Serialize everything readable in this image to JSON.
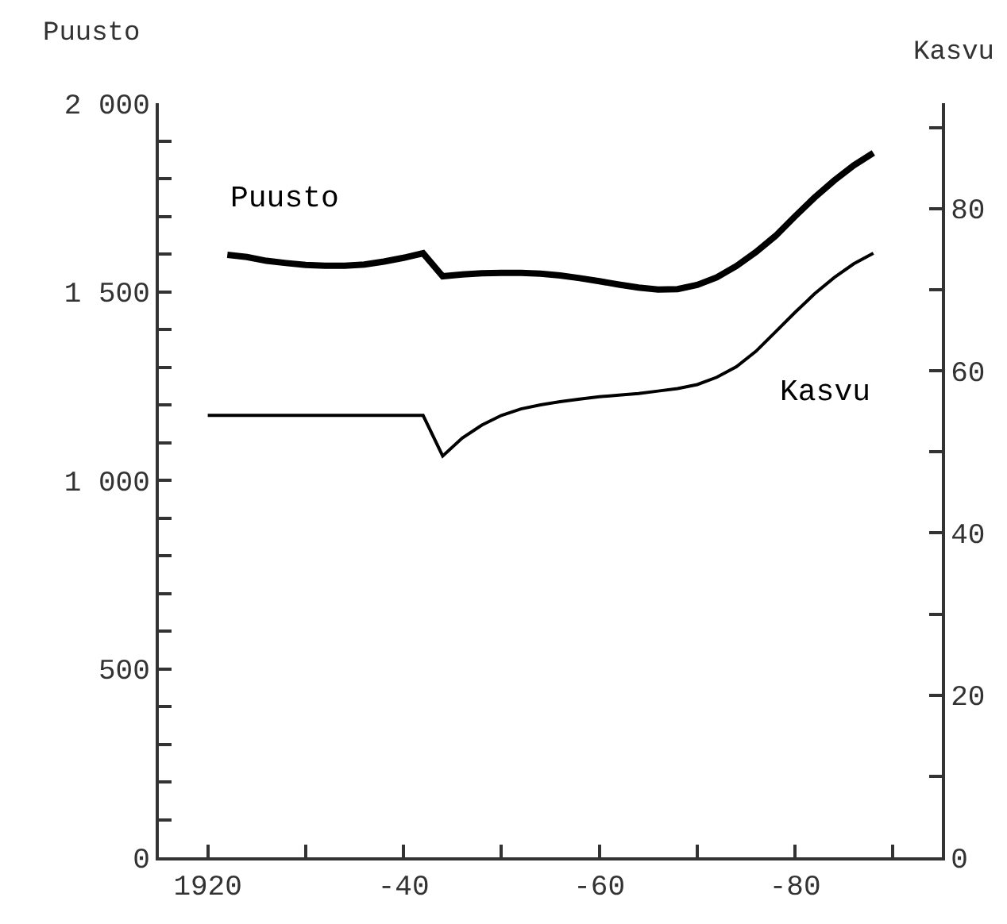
{
  "chart_data": {
    "type": "line",
    "ylabel": "Puusto",
    "y2label": "Kasvu",
    "categories": [
      null,
      null,
      "1920",
      null,
      null,
      null,
      null,
      null,
      null,
      null,
      null,
      null,
      "-40",
      null,
      null,
      null,
      null,
      null,
      null,
      null,
      null,
      null,
      "-60",
      null,
      null,
      null,
      null,
      null,
      null,
      null,
      null,
      null,
      "-80",
      null,
      null,
      null,
      null,
      null,
      null,
      null
    ],
    "ylim": [
      0,
      2000
    ],
    "yticks": [
      0,
      {
        "value": 100,
        "label": null
      },
      {
        "value": 200,
        "label": null
      },
      {
        "value": 300,
        "label": null
      },
      {
        "value": 400,
        "label": null
      },
      500,
      {
        "value": 600,
        "label": null
      },
      {
        "value": 700,
        "label": null
      },
      {
        "value": 800,
        "label": null
      },
      {
        "value": 900,
        "label": null
      },
      {
        "value": 1000,
        "label": "1 000"
      },
      {
        "value": 1100,
        "label": null
      },
      {
        "value": 1200,
        "label": null
      },
      {
        "value": 1300,
        "label": null
      },
      {
        "value": 1400,
        "label": null
      },
      {
        "value": 1500,
        "label": "1 500"
      },
      {
        "value": 1600,
        "label": null
      },
      {
        "value": 1700,
        "label": null
      },
      {
        "value": 1800,
        "label": null
      },
      {
        "value": 1900,
        "label": null
      },
      {
        "value": 2000,
        "label": "2 000"
      }
    ],
    "y2lim": [
      0,
      93
    ],
    "y2ticks": [
      0,
      {
        "value": 10,
        "label": null
      },
      20,
      {
        "value": 30,
        "label": null
      },
      40,
      {
        "value": 50,
        "label": null
      },
      60,
      {
        "value": 70,
        "label": null
      },
      80,
      {
        "value": 90,
        "label": null
      }
    ],
    "marker": "none",
    "line_style": "solid",
    "series": [
      {
        "name": "Puusto",
        "color": "#000000",
        "values": [
          null,
          null,
          null,
          1598,
          1592,
          1582,
          1576,
          1571,
          1569,
          1569,
          1572,
          1580,
          1590,
          1602,
          1541,
          1546,
          1549,
          1550,
          1550,
          1548,
          1543,
          1536,
          1528,
          1519,
          1511,
          1506,
          1507,
          1518,
          1538,
          1568,
          1605,
          1648,
          1700,
          1750,
          1795,
          1835,
          1868,
          null,
          null,
          null
        ]
      },
      {
        "name": "Kasvu",
        "color": "#000000",
        "axis": "y2",
        "values": [
          null,
          null,
          54.5,
          54.5,
          54.5,
          54.5,
          54.5,
          54.5,
          54.5,
          54.5,
          54.5,
          54.5,
          54.5,
          54.5,
          49.5,
          51.7,
          53.3,
          54.5,
          55.3,
          55.8,
          56.2,
          56.5,
          56.8,
          57.0,
          57.2,
          57.5,
          57.8,
          58.3,
          59.2,
          60.5,
          62.4,
          64.8,
          67.2,
          69.5,
          71.5,
          73.2,
          74.5,
          null,
          null,
          null
        ]
      }
    ]
  }
}
